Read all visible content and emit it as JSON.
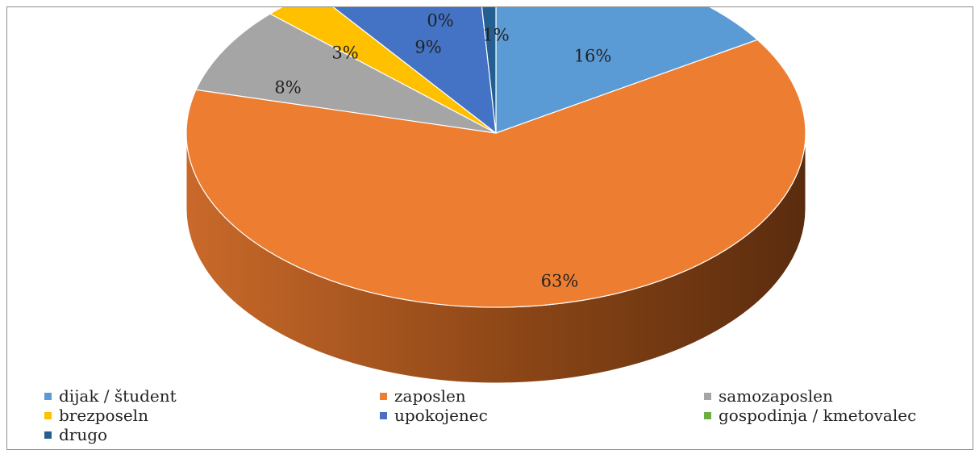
{
  "chart_data": {
    "type": "pie",
    "title": "",
    "style": "3d",
    "legend_position": "bottom",
    "label_suffix": "%",
    "slices": [
      {
        "name": "dijak / študent",
        "value": 16,
        "label": "16%",
        "color": "#5B9BD5"
      },
      {
        "name": "zaposlen",
        "value": 63,
        "label": "63%",
        "color": "#ED7D31"
      },
      {
        "name": "samozaposlen",
        "value": 8,
        "label": "8%",
        "color": "#A5A5A5"
      },
      {
        "name": "brezposeln",
        "value": 3,
        "label": "3%",
        "color": "#FFC000"
      },
      {
        "name": "upokojenec",
        "value": 9,
        "label": "9%",
        "color": "#4472C4"
      },
      {
        "name": "gospodinja / kmetovalec",
        "value": 0,
        "label": "0%",
        "color": "#70AD47"
      },
      {
        "name": "drugo",
        "value": 1,
        "label": "1%",
        "color": "#255E91"
      }
    ]
  }
}
